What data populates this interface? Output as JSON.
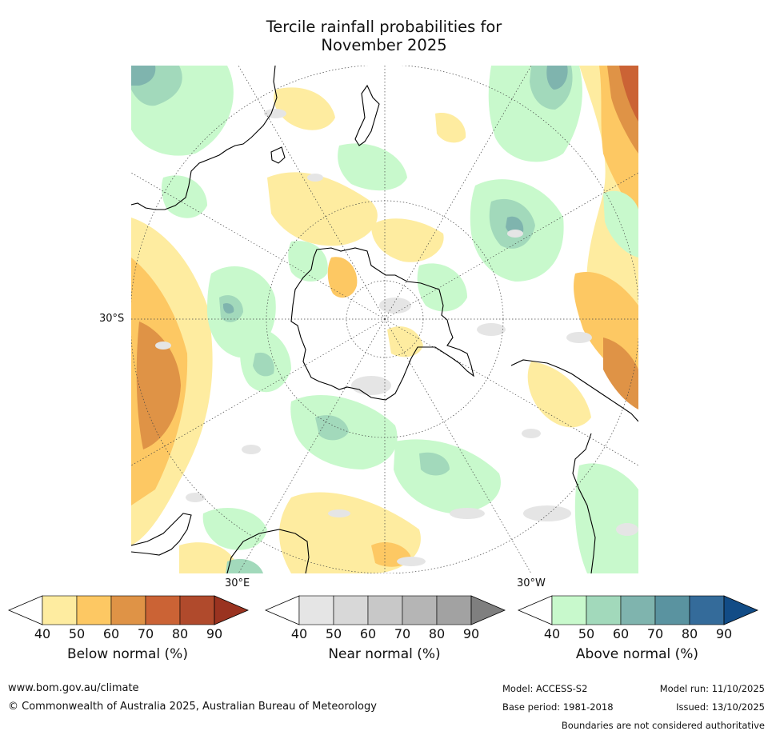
{
  "title": {
    "line1": "Tercile rainfall probabilities for",
    "line2": "November 2025"
  },
  "map": {
    "lat_label": "30°S",
    "lon_label_e": "30°E",
    "lon_label_w": "30°W"
  },
  "colorbars": [
    {
      "label": "Below normal (%)",
      "ticks": [
        "40",
        "50",
        "60",
        "70",
        "80",
        "90"
      ],
      "colors": [
        "#ffffff",
        "#feeca0",
        "#fdc863",
        "#df9346",
        "#cb6335",
        "#b04a2c",
        "#9a3320"
      ]
    },
    {
      "label": "Near normal (%)",
      "ticks": [
        "40",
        "50",
        "60",
        "70",
        "80",
        "90"
      ],
      "colors": [
        "#ffffff",
        "#e5e5e5",
        "#d8d8d8",
        "#c8c8c8",
        "#b5b5b5",
        "#a2a2a2",
        "#7f7f7f"
      ]
    },
    {
      "label": "Above normal (%)",
      "ticks": [
        "40",
        "50",
        "60",
        "70",
        "80",
        "90"
      ],
      "colors": [
        "#ffffff",
        "#c8f9cc",
        "#a2d9bb",
        "#7fb4ae",
        "#5a93a0",
        "#346b9a",
        "#124c86"
      ]
    }
  ],
  "footer": {
    "website": "www.bom.gov.au/climate",
    "copyright": "© Commonwealth of Australia 2025, Australian Bureau of Meteorology",
    "model": "Model: ACCESS-S2",
    "model_run": "Model run: 11/10/2025",
    "base_period": "Base period: 1981-2018",
    "issued": "Issued: 13/10/2025",
    "disclaimer": "Boundaries are not considered authoritative"
  }
}
